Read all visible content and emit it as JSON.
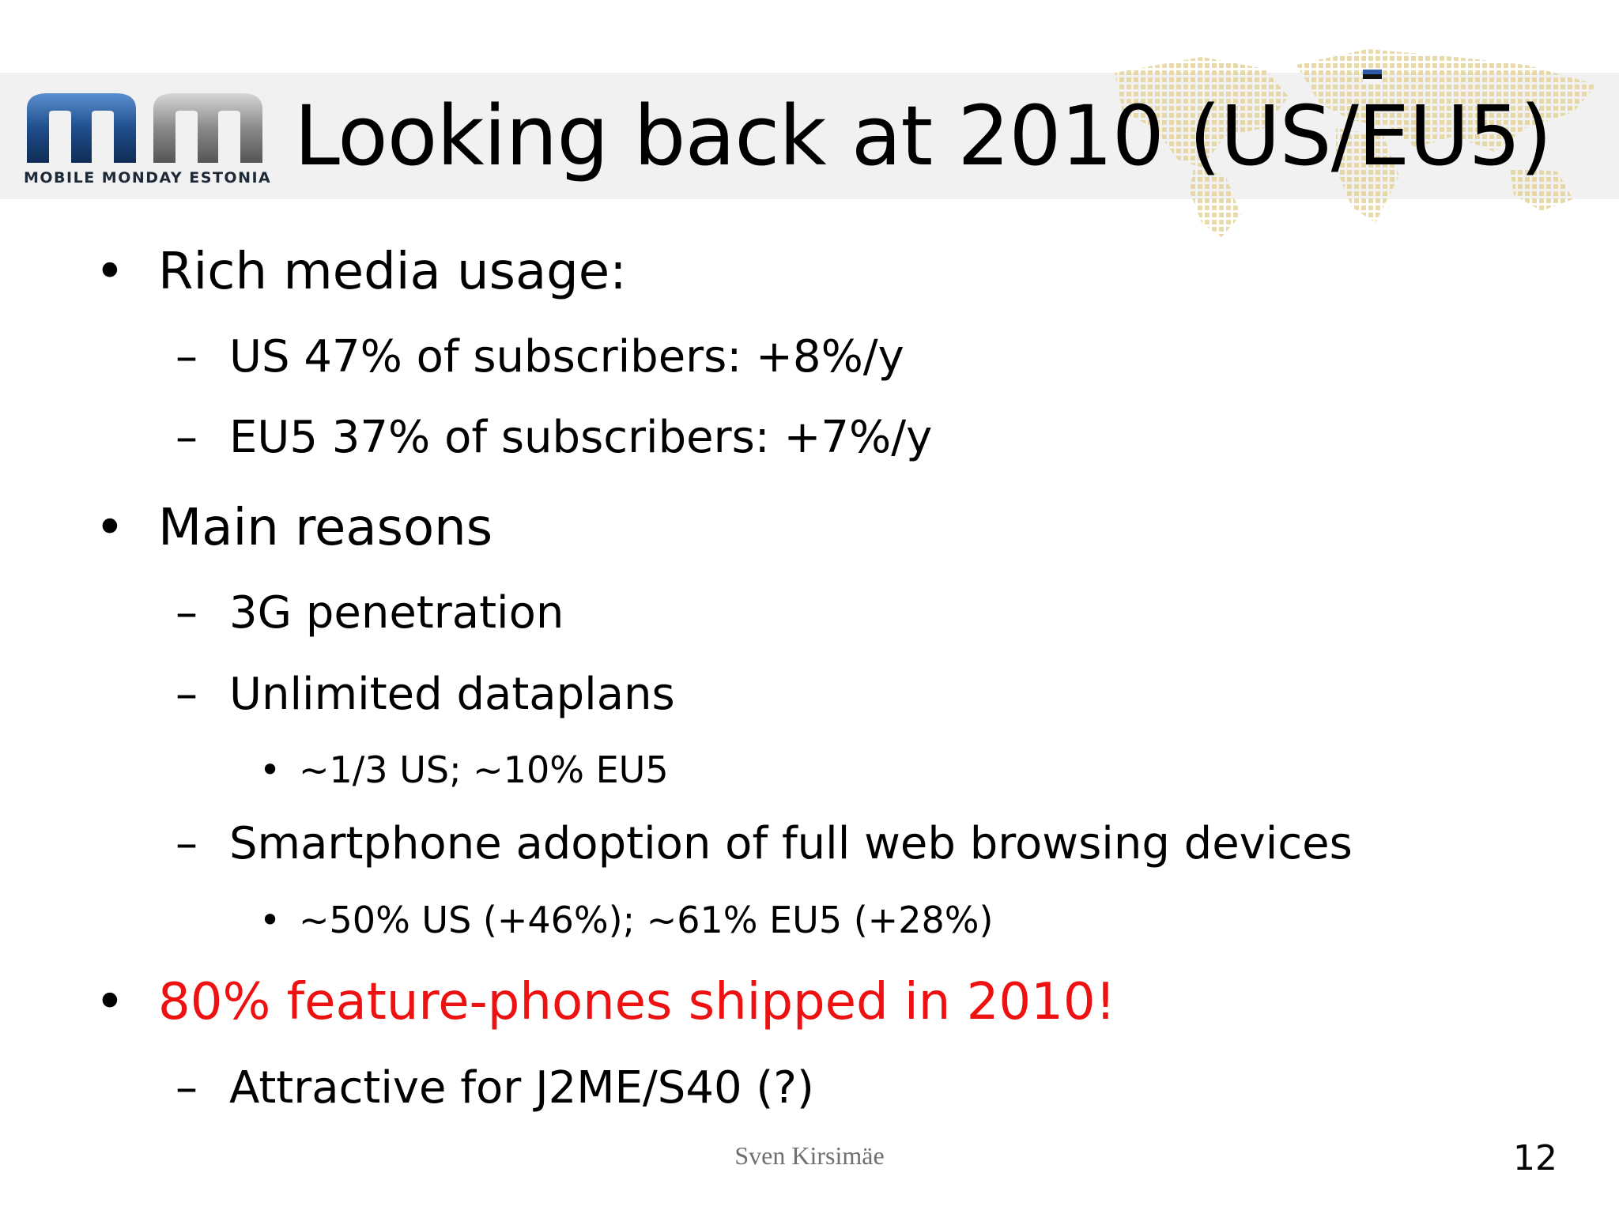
{
  "slide": {
    "logo_text": "MOBILE MONDAY ESTONIA",
    "title": "Looking back at 2010 (US/EU5)",
    "bullets": [
      {
        "marker": "•",
        "text": "Rich media usage:",
        "level": 1,
        "color": "#000000"
      },
      {
        "marker": "–",
        "text": "US 47% of subscribers: +8%/y",
        "level": 2,
        "color": "#000000"
      },
      {
        "marker": "–",
        "text": "EU5 37% of subscribers: +7%/y",
        "level": 2,
        "color": "#000000"
      },
      {
        "marker": "•",
        "text": "Main reasons",
        "level": 1,
        "color": "#000000"
      },
      {
        "marker": "–",
        "text": "3G penetration",
        "level": 2,
        "color": "#000000"
      },
      {
        "marker": "–",
        "text": "Unlimited dataplans",
        "level": 2,
        "color": "#000000"
      },
      {
        "marker": "•",
        "text": "~1/3 US; ~10% EU5",
        "level": 3,
        "color": "#000000"
      },
      {
        "marker": "–",
        "text": "Smartphone adoption of full web browsing devices",
        "level": 2,
        "color": "#000000"
      },
      {
        "marker": "•",
        "text": "~50% US (+46%); ~61% EU5 (+28%)",
        "level": 3,
        "color": "#000000"
      },
      {
        "marker": "•",
        "text": "80% feature-phones shipped in 2010!",
        "level": 1,
        "color": "#ee1111"
      },
      {
        "marker": "–",
        "text": "Attractive for J2ME/S40 (?)",
        "level": 2,
        "color": "#000000"
      }
    ],
    "footer": "Sven Kirsimäe",
    "page_number": "12"
  },
  "colors": {
    "text": "#000000",
    "highlight": "#ee1111",
    "logo_blue": "#1f4e8c",
    "footer_gray": "#6f6f6f"
  },
  "icons": {
    "logo": "mobile-monday-logo",
    "background": "world-map-dots"
  }
}
